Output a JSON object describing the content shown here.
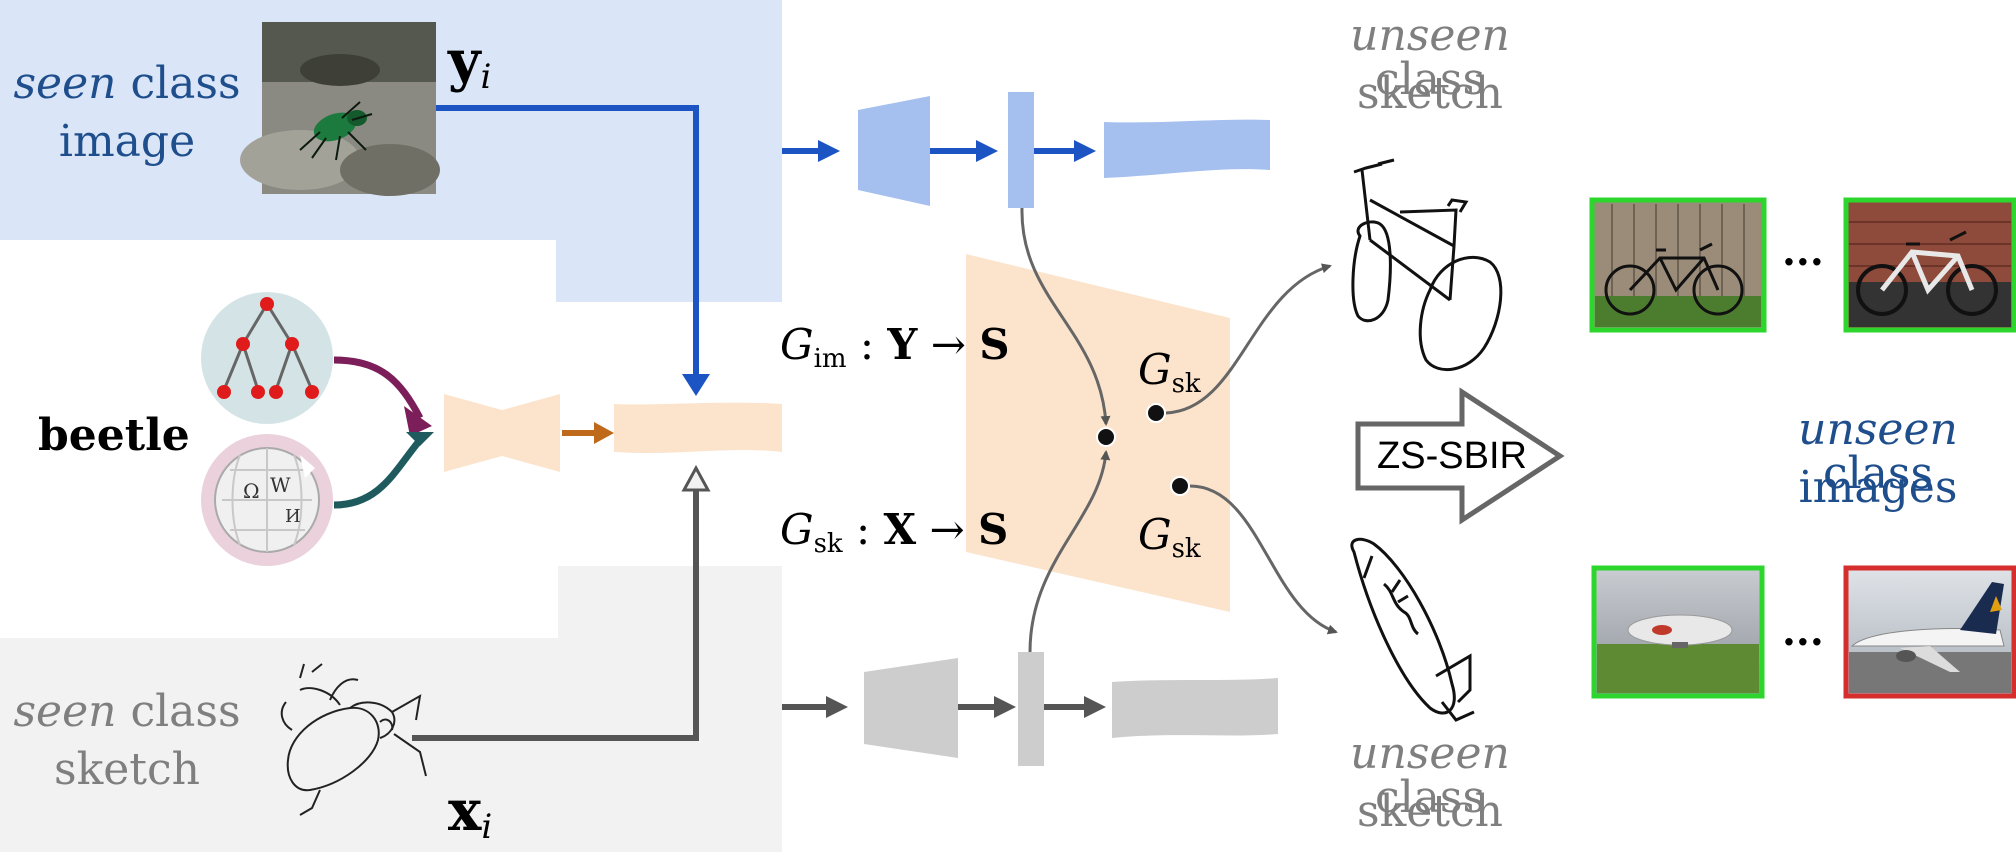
{
  "labels": {
    "seen_class_image": {
      "emph": "seen",
      "rest": " class",
      "line2": "image"
    },
    "seen_class_sketch": {
      "emph": "seen",
      "rest": " class",
      "line2": "sketch"
    },
    "unseen_class_sketch_top": {
      "emph": "unseen",
      "rest": " class",
      "line2": "sketch"
    },
    "unseen_class_sketch_bottom": {
      "emph": "unseen",
      "rest": " class",
      "line2": "sketch"
    },
    "unseen_class_images": {
      "emph": "unseen",
      "rest": " class",
      "line2": "images"
    },
    "class_name": "beetle",
    "retrieval": "ZS-SBIR",
    "ellipsis": "..."
  },
  "math": {
    "y_sym": "y",
    "y_sub": "i",
    "x_sym": "x",
    "x_sub": "i",
    "g": "G",
    "im_sub": "im",
    "sk_sub": "sk",
    "Y": "Y",
    "X": "X",
    "S": "S",
    "colon": " : ",
    "arrow": " → "
  },
  "colors": {
    "blue_region": "#dae6f8",
    "gray_region": "#f2f2f2",
    "encoder_blue": "#a5c0ef",
    "encoder_gray": "#cdcdcd",
    "encoder_orange": "#fce4cc",
    "arrow_blue": "#1c54c4",
    "arrow_gray": "#555555",
    "hierarchy_bg": "#d4e4e6",
    "wiki_bg": "#ead1dc",
    "border_green": "#2dd62d",
    "border_red": "#d62d2d",
    "label_blue": "#1f4e8c",
    "label_gray": "#7f7f7f"
  },
  "images": [
    {
      "name": "seen-beetle-photo",
      "depicts": "green beetle on rock"
    },
    {
      "name": "unseen-bicycle-photo-1",
      "depicts": "bicycle against wooden fence",
      "border": "green"
    },
    {
      "name": "unseen-bicycle-photo-2",
      "depicts": "bicycle against brick wall",
      "border": "green"
    },
    {
      "name": "unseen-airship-photo",
      "depicts": "airship on grass field",
      "border": "green"
    },
    {
      "name": "unseen-airplane-photo",
      "depicts": "airplane on tarmac",
      "border": "red"
    }
  ],
  "icons": [
    "hierarchy-tree-icon",
    "wikipedia-globe-icon",
    "beetle-sketch",
    "bicycle-sketch",
    "airship-sketch"
  ]
}
